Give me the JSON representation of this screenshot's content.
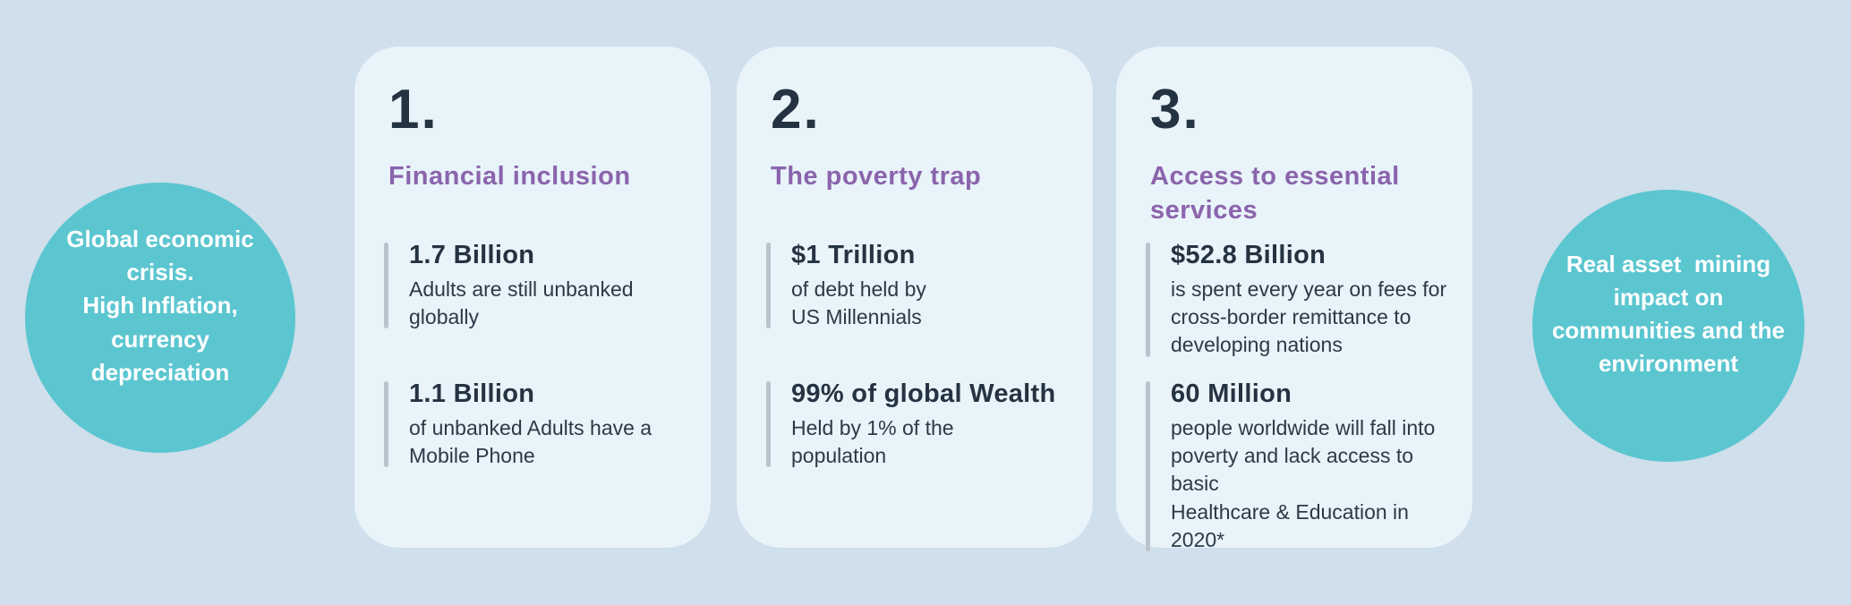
{
  "palette": {
    "background": "#cfdfeb",
    "card_background": "#e9f3fa",
    "circle_teal": "#5cc6d0",
    "heading_purple": "#8a64ac",
    "text_navy": "#243341",
    "divider_gray": "#b9c3cc",
    "circle_text_white": "#ffffff"
  },
  "left_circle": {
    "text": "Global economic\ncrisis.\nHigh Inflation,\ncurrency\ndepreciation"
  },
  "right_circle": {
    "text": "Real asset  mining\nimpact on\ncommunities and the\nenvironment"
  },
  "cards": [
    {
      "number": "1.",
      "title": "Financial inclusion",
      "stats": [
        {
          "value": "1.7 Billion",
          "description": "Adults are still unbanked\nglobally"
        },
        {
          "value": "1.1 Billion",
          "description": "of unbanked Adults have a\nMobile Phone"
        }
      ]
    },
    {
      "number": "2.",
      "title": "The poverty trap",
      "stats": [
        {
          "value": "$1 Trillion",
          "description": "of debt held by\nUS Millennials"
        },
        {
          "value": "99% of global Wealth",
          "description": "Held by 1% of the\npopulation"
        }
      ]
    },
    {
      "number": "3.",
      "title": "Access to essential\nservices",
      "stats": [
        {
          "value": "$52.8 Billion",
          "description": "is spent every year on fees for\ncross-border remittance to\ndeveloping nations"
        },
        {
          "value": "60 Million",
          "description": "people worldwide will fall into\npoverty and lack access to basic\nHealthcare & Education in 2020*"
        }
      ]
    }
  ]
}
